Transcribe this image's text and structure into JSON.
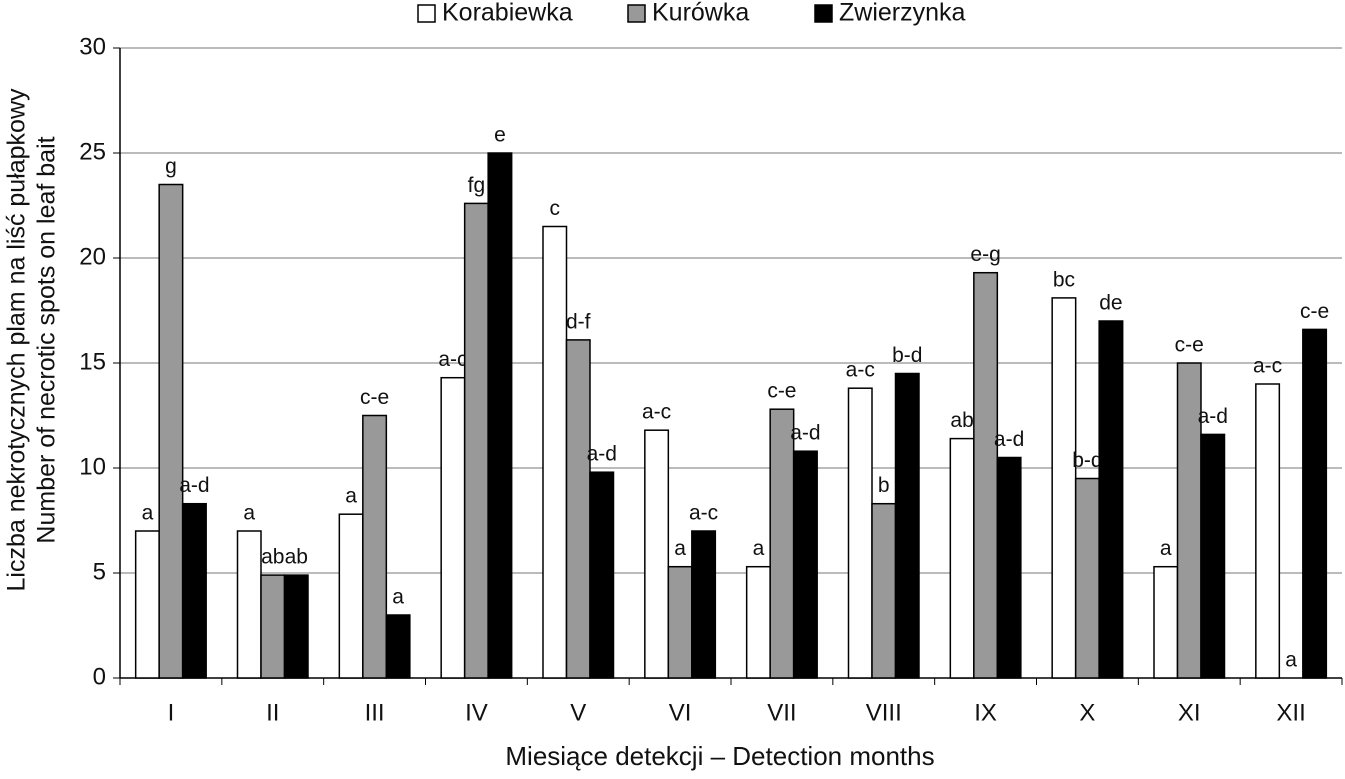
{
  "chart_data": {
    "type": "bar",
    "xlabel": "Miesiące detekcji – Detection months",
    "ylabel": [
      "Liczba nekrotycznych plam na liść pułapkowy",
      "Number of necrotic spots on leaf bait"
    ],
    "categories": [
      "I",
      "II",
      "III",
      "IV",
      "V",
      "VI",
      "VII",
      "VIII",
      "IX",
      "X",
      "XI",
      "XII"
    ],
    "series": [
      {
        "name": "Korabiewka",
        "color": "#ffffff",
        "values": [
          7.0,
          7.0,
          7.8,
          14.3,
          21.5,
          11.8,
          5.3,
          13.8,
          11.4,
          18.1,
          5.3,
          14.0
        ],
        "letters": [
          "a",
          "a",
          "a",
          "a-c",
          "c",
          "a-c",
          "a",
          "a-c",
          "ab",
          "bc",
          "a",
          "a-c"
        ]
      },
      {
        "name": "Kurówka",
        "color": "#999999",
        "values": [
          23.5,
          4.9,
          12.5,
          22.6,
          16.1,
          5.3,
          12.8,
          8.3,
          19.3,
          9.5,
          15.0,
          0
        ],
        "letters": [
          "g",
          "ab",
          "c-e",
          "fg",
          "d-f",
          "a",
          "c-e",
          "b",
          "e-g",
          "b-d",
          "c-e",
          "a"
        ]
      },
      {
        "name": "Zwierzynka",
        "color": "#000000",
        "values": [
          8.3,
          4.9,
          3.0,
          25.0,
          9.8,
          7.0,
          10.8,
          14.5,
          10.5,
          17.0,
          11.6,
          16.6
        ],
        "letters": [
          "a-d",
          "ab",
          "a",
          "e",
          "a-d",
          "a-c",
          "a-d",
          "b-d",
          "a-d",
          "de",
          "a-d",
          "c-e"
        ]
      }
    ],
    "ylim": [
      0,
      30
    ],
    "yticks": [
      0,
      5,
      10,
      15,
      20,
      25,
      30
    ],
    "grid": true,
    "legend": "top"
  }
}
